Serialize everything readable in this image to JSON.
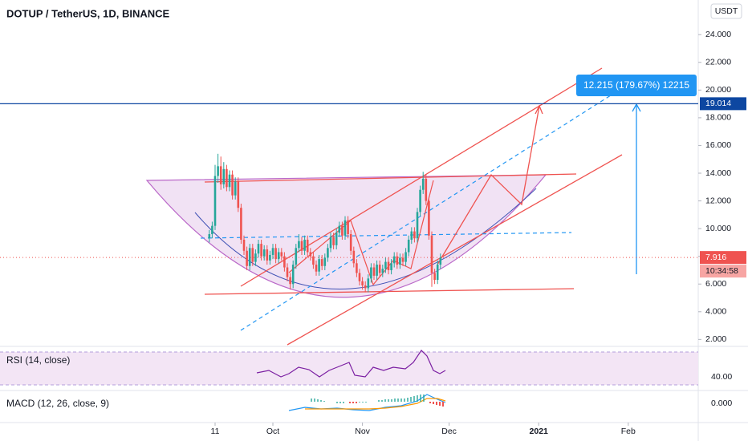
{
  "header": {
    "title": "DOTUP / TetherUS, 1D, BINANCE",
    "currency": "USDT"
  },
  "chart_data": {
    "type": "candlestick",
    "x": [
      "2020-09-09",
      "2020-09-10",
      "2020-09-11",
      "2020-09-12",
      "2020-09-13",
      "2020-09-14",
      "2020-09-15",
      "2020-09-16",
      "2020-09-17",
      "2020-09-18",
      "2020-09-19",
      "2020-09-20",
      "2020-09-21",
      "2020-09-22",
      "2020-09-23",
      "2020-09-24",
      "2020-09-25",
      "2020-09-26",
      "2020-09-27",
      "2020-09-28",
      "2020-09-29",
      "2020-09-30",
      "2020-10-01",
      "2020-10-02",
      "2020-10-03",
      "2020-10-04",
      "2020-10-05",
      "2020-10-06",
      "2020-10-07",
      "2020-10-08",
      "2020-10-09",
      "2020-10-10",
      "2020-10-11",
      "2020-10-12",
      "2020-10-13",
      "2020-10-14",
      "2020-10-15",
      "2020-10-16",
      "2020-10-17",
      "2020-10-18",
      "2020-10-19",
      "2020-10-20",
      "2020-10-21",
      "2020-10-22",
      "2020-10-23",
      "2020-10-24",
      "2020-10-25",
      "2020-10-26",
      "2020-10-27",
      "2020-10-28",
      "2020-10-29",
      "2020-10-30",
      "2020-10-31",
      "2020-11-01",
      "2020-11-02",
      "2020-11-03",
      "2020-11-04",
      "2020-11-05",
      "2020-11-06",
      "2020-11-07",
      "2020-11-08",
      "2020-11-09",
      "2020-11-10",
      "2020-11-11",
      "2020-11-12",
      "2020-11-13",
      "2020-11-14",
      "2020-11-15",
      "2020-11-16",
      "2020-11-17",
      "2020-11-18",
      "2020-11-19",
      "2020-11-20",
      "2020-11-21",
      "2020-11-22",
      "2020-11-23",
      "2020-11-24",
      "2020-11-25",
      "2020-11-26",
      "2020-11-27",
      "2020-11-28"
    ],
    "open": [
      9.3,
      9.6,
      10.2,
      13.8,
      14.5,
      13.2,
      14.3,
      13.0,
      13.9,
      12.4,
      13.4,
      11.5,
      9.2,
      8.4,
      7.3,
      8.6,
      7.6,
      8.2,
      8.9,
      8.0,
      8.5,
      7.7,
      8.1,
      8.6,
      7.8,
      8.3,
      8.0,
      7.2,
      6.5,
      6.0,
      7.4,
      8.6,
      9.1,
      8.4,
      9.2,
      8.3,
      8.0,
      7.4,
      6.9,
      7.8,
      7.3,
      7.9,
      8.6,
      9.4,
      8.8,
      9.7,
      10.2,
      9.5,
      10.6,
      9.6,
      8.4,
      7.5,
      6.8,
      6.2,
      5.9,
      5.7,
      6.4,
      7.2,
      6.6,
      7.4,
      6.8,
      7.1,
      7.6,
      7.0,
      7.5,
      8.0,
      7.4,
      7.9,
      7.6,
      8.3,
      9.2,
      9.8,
      9.3,
      11.2,
      12.8,
      13.6,
      12.0,
      9.5,
      6.8,
      6.3,
      7.4
    ],
    "high": [
      9.9,
      10.5,
      14.6,
      15.4,
      15.2,
      14.8,
      14.6,
      14.2,
      14.2,
      13.7,
      13.7,
      11.8,
      9.5,
      8.7,
      8.9,
      8.9,
      8.5,
      9.2,
      9.2,
      8.8,
      8.8,
      8.4,
      8.9,
      8.9,
      8.6,
      8.6,
      8.3,
      7.5,
      6.8,
      7.7,
      8.9,
      9.6,
      9.4,
      9.5,
      9.5,
      8.6,
      8.3,
      7.7,
      8.1,
      8.1,
      8.2,
      8.9,
      9.7,
      9.7,
      10.0,
      10.5,
      10.5,
      10.9,
      10.9,
      9.9,
      8.7,
      7.8,
      7.1,
      6.5,
      6.2,
      6.7,
      7.5,
      7.5,
      7.7,
      7.7,
      7.4,
      7.9,
      7.9,
      7.8,
      8.3,
      8.3,
      8.2,
      8.2,
      8.6,
      9.5,
      10.1,
      10.1,
      11.5,
      13.1,
      14.1,
      13.9,
      12.3,
      9.8,
      7.1,
      7.7,
      8.2
    ],
    "low": [
      9.0,
      9.3,
      9.9,
      13.3,
      12.8,
      12.9,
      12.7,
      12.7,
      12.1,
      12.1,
      11.2,
      8.9,
      8.1,
      7.0,
      7.0,
      7.3,
      7.3,
      7.9,
      7.7,
      7.7,
      7.4,
      7.4,
      7.8,
      7.5,
      7.5,
      7.7,
      6.9,
      6.2,
      5.6,
      5.7,
      7.1,
      8.3,
      8.1,
      8.1,
      8.0,
      7.7,
      7.1,
      6.6,
      6.6,
      7.0,
      7.0,
      7.6,
      8.3,
      8.5,
      8.5,
      9.4,
      9.2,
      9.2,
      9.3,
      8.1,
      7.2,
      6.5,
      5.9,
      5.6,
      5.4,
      5.4,
      6.1,
      6.3,
      6.3,
      6.5,
      6.5,
      6.8,
      6.7,
      6.7,
      7.2,
      7.1,
      7.1,
      7.3,
      7.3,
      8.0,
      8.9,
      9.0,
      9.0,
      10.9,
      12.5,
      11.7,
      9.2,
      5.8,
      6.0,
      6.0,
      7.1
    ],
    "close": [
      9.6,
      10.2,
      13.8,
      14.5,
      13.2,
      14.3,
      13.0,
      13.9,
      12.4,
      13.4,
      11.5,
      9.2,
      8.4,
      7.3,
      8.6,
      7.6,
      8.2,
      8.9,
      8.0,
      8.5,
      7.7,
      8.1,
      8.6,
      7.8,
      8.3,
      8.0,
      7.2,
      6.5,
      6.0,
      7.4,
      8.6,
      9.1,
      8.4,
      9.2,
      8.3,
      8.0,
      7.4,
      6.9,
      7.8,
      7.3,
      7.9,
      8.6,
      9.4,
      8.8,
      9.7,
      10.2,
      9.5,
      10.6,
      9.6,
      8.4,
      7.5,
      6.8,
      6.2,
      5.9,
      5.7,
      6.4,
      7.2,
      6.6,
      7.4,
      6.8,
      7.1,
      7.6,
      7.0,
      7.5,
      8.0,
      7.4,
      7.9,
      7.6,
      8.3,
      9.2,
      9.8,
      9.3,
      11.2,
      12.8,
      13.6,
      12.0,
      9.5,
      6.8,
      6.3,
      7.4,
      7.9
    ],
    "up_color": "#26a69a",
    "down_color": "#ef5350",
    "ylim": [
      1.5,
      26.5
    ],
    "yticks": [
      {
        "value": 2,
        "label": "2.000"
      },
      {
        "value": 4,
        "label": "4.000"
      },
      {
        "value": 6,
        "label": "6.000"
      },
      {
        "value": 8,
        "label": "8.000"
      },
      {
        "value": 10,
        "label": "10.000"
      },
      {
        "value": 12,
        "label": "12.000"
      },
      {
        "value": 14,
        "label": "14.000"
      },
      {
        "value": 16,
        "label": "16.000"
      },
      {
        "value": 18,
        "label": "18.000"
      },
      {
        "value": 20,
        "label": "20.000"
      },
      {
        "value": 22,
        "label": "22.000"
      },
      {
        "value": 24,
        "label": "24.000"
      }
    ],
    "xticks": [
      {
        "value": "2020-09-11",
        "label": "11"
      },
      {
        "value": "2020-10-01",
        "label": "Oct"
      },
      {
        "value": "2020-11-01",
        "label": "Nov"
      },
      {
        "value": "2020-12-01",
        "label": "Dec"
      },
      {
        "value": "2021-01-01",
        "label": "2021"
      },
      {
        "value": "2021-02-01",
        "label": "Feb"
      }
    ],
    "price_lines": [
      {
        "value": 19.014,
        "label": "19.014",
        "color": "#0d47a1"
      },
      {
        "value": 7.916,
        "label": "7.916",
        "color": "#ef5350"
      }
    ],
    "countdown": "10:34:58",
    "measure_label": "12.215 (179.67%) 12215"
  },
  "indicators": {
    "rsi": {
      "label": "RSI (14, close)",
      "tick": "40.00"
    },
    "macd": {
      "label": "MACD (12, 26, close, 9)",
      "tick": "0.000"
    }
  }
}
